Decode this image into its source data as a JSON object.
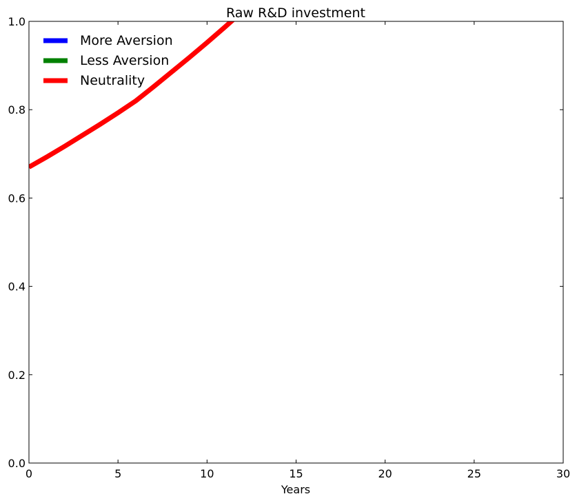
{
  "chart_data": {
    "type": "line",
    "title": "Raw R&D investment",
    "xlabel": "Years",
    "ylabel": "",
    "xlim": [
      0,
      30
    ],
    "ylim": [
      0,
      1.0
    ],
    "xticks": [
      0,
      5,
      10,
      15,
      20,
      25,
      30
    ],
    "xtick_labels": [
      "0",
      "5",
      "10",
      "15",
      "20",
      "25",
      "30"
    ],
    "yticks": [
      0.0,
      0.2,
      0.4,
      0.6,
      0.8,
      1.0
    ],
    "ytick_labels": [
      "0.0",
      "0.2",
      "0.4",
      "0.6",
      "0.8",
      "1.0"
    ],
    "grid": false,
    "legend_position": "top-left",
    "series": [
      {
        "name": "More Aversion",
        "color": "#0000ff",
        "x": [],
        "y": []
      },
      {
        "name": "Less Aversion",
        "color": "#008000",
        "x": [],
        "y": []
      },
      {
        "name": "Neutrality",
        "color": "#ff0000",
        "x": [
          0,
          1,
          2,
          3,
          4,
          5,
          6,
          7,
          8,
          9,
          10,
          11,
          12,
          13
        ],
        "y": [
          0.67,
          0.693,
          0.717,
          0.742,
          0.767,
          0.793,
          0.82,
          0.852,
          0.885,
          0.918,
          0.952,
          0.987,
          1.023,
          1.06
        ]
      }
    ]
  }
}
